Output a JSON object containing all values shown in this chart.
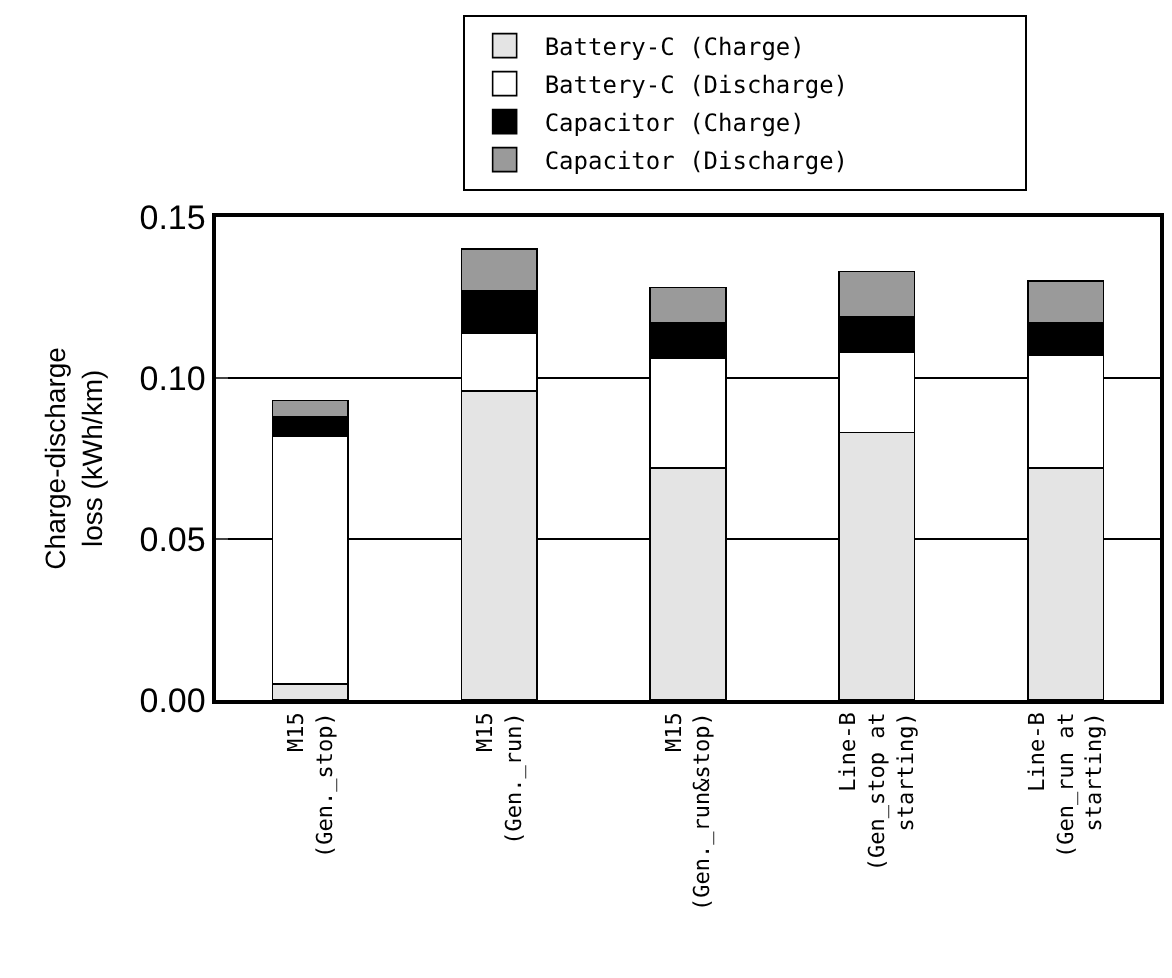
{
  "chart_data": {
    "type": "bar",
    "stacked": true,
    "categories": [
      "M15\n(Gen._stop)",
      "M15\n(Gen._run)",
      "M15\n(Gen._run&stop)",
      "Line-B\n(Gen_stop at\nstarting)",
      "Line-B\n(Gen_run at\nstarting)"
    ],
    "series": [
      {
        "name": "Battery-C (Charge)",
        "color": "#e4e4e4",
        "values": [
          0.005,
          0.096,
          0.072,
          0.083,
          0.072
        ]
      },
      {
        "name": "Battery-C (Discharge)",
        "color": "#ffffff",
        "values": [
          0.077,
          0.018,
          0.034,
          0.025,
          0.035
        ]
      },
      {
        "name": "Capacitor (Charge)",
        "color": "#000000",
        "values": [
          0.006,
          0.013,
          0.011,
          0.011,
          0.01
        ]
      },
      {
        "name": "Capacitor (Discharge)",
        "color": "#9a9a9a",
        "values": [
          0.005,
          0.013,
          0.011,
          0.014,
          0.013
        ]
      }
    ],
    "ylabel": "Charge-discharge\nloss (kWh/km)",
    "ylim": [
      0,
      0.15
    ],
    "yticks": [
      {
        "value": 0,
        "label": "0.00"
      },
      {
        "value": 0.05,
        "label": "0.05"
      },
      {
        "value": 0.1,
        "label": "0.10"
      },
      {
        "value": 0.15,
        "label": "0.15"
      }
    ],
    "grid": "y",
    "legend": "top"
  }
}
